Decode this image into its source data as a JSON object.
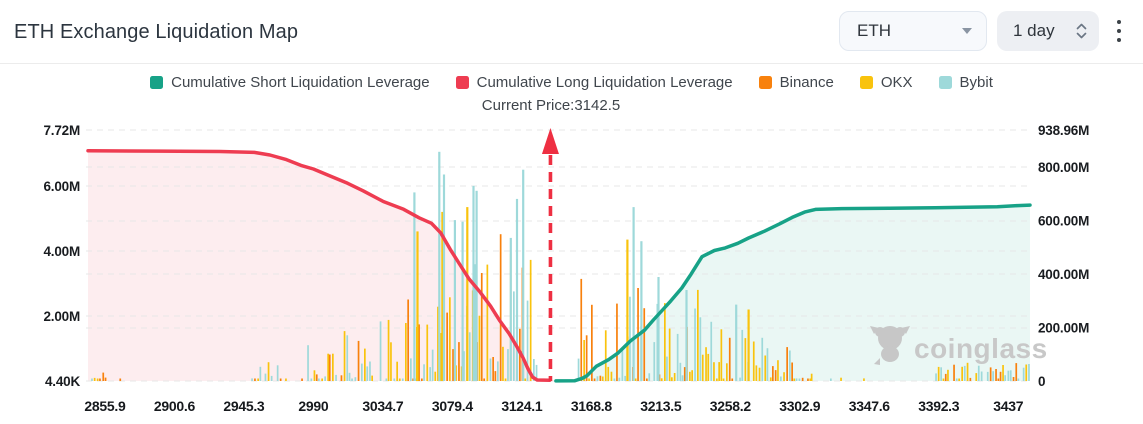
{
  "header": {
    "title": "ETH Exchange Liquidation Map",
    "symbol_select": {
      "value": "ETH"
    },
    "period_select": {
      "value": "1 day"
    }
  },
  "legend": {
    "items": [
      {
        "label": "Cumulative Short Liquidation Leverage",
        "color_key": "short"
      },
      {
        "label": "Cumulative Long Liquidation Leverage",
        "color_key": "long"
      },
      {
        "label": "Binance",
        "color_key": "binance"
      },
      {
        "label": "OKX",
        "color_key": "okx"
      },
      {
        "label": "Bybit",
        "color_key": "bybit"
      }
    ]
  },
  "annotation": {
    "current_price_text": "Current Price:3142.5",
    "current_price": 3142.5
  },
  "watermark_text": "coinglass",
  "colors": {
    "short": "#17a287",
    "long": "#ee3c51",
    "binance": "#f8810d",
    "okx": "#f9c30d",
    "bybit": "#9ed9da",
    "gridline": "#e7e7e7",
    "watermark": "#c7c7c7"
  },
  "chart_data": {
    "type": "bar+line",
    "title": "ETH Exchange Liquidation Map",
    "x_axis": {
      "min": 2845,
      "max": 3451,
      "ticks": [
        "2855.9",
        "2900.6",
        "2945.3",
        "2990",
        "3034.7",
        "3079.4",
        "3124.1",
        "3168.8",
        "3213.5",
        "3258.2",
        "3302.9",
        "3347.6",
        "3392.3",
        "3437"
      ],
      "tick_values": [
        2855.9,
        2900.6,
        2945.3,
        2990,
        3034.7,
        3079.4,
        3124.1,
        3168.8,
        3213.5,
        3258.2,
        3302.9,
        3347.6,
        3392.3,
        3437
      ]
    },
    "y_left": {
      "max_m": 7.72,
      "ticks": [
        {
          "label": "7.72M",
          "value_m": 7.72
        },
        {
          "label": "6.00M",
          "value_m": 6.0
        },
        {
          "label": "4.00M",
          "value_m": 4.0
        },
        {
          "label": "2.00M",
          "value_m": 2.0
        },
        {
          "label": "4.40K",
          "value_m": 0.0044
        }
      ]
    },
    "y_right": {
      "max_m": 938.96,
      "ticks": [
        {
          "label": "938.96M",
          "value_m": 938.96
        },
        {
          "label": "800.00M",
          "value_m": 800
        },
        {
          "label": "600.00M",
          "value_m": 600
        },
        {
          "label": "400.00M",
          "value_m": 400
        },
        {
          "label": "200.00M",
          "value_m": 200
        },
        {
          "label": "0",
          "value_m": 0
        }
      ]
    },
    "current_price": 3142.5,
    "series": [
      {
        "name": "Cumulative Long Liquidation Leverage",
        "axis": "left",
        "color_key": "long",
        "points": [
          [
            2845,
            7.08
          ],
          [
            2890,
            7.07
          ],
          [
            2930,
            7.06
          ],
          [
            2952,
            7.03
          ],
          [
            2962,
            6.95
          ],
          [
            2972,
            6.82
          ],
          [
            2982,
            6.63
          ],
          [
            2990,
            6.52
          ],
          [
            3000,
            6.32
          ],
          [
            3012,
            6.08
          ],
          [
            3022,
            5.85
          ],
          [
            3035,
            5.52
          ],
          [
            3048,
            5.28
          ],
          [
            3058,
            5.02
          ],
          [
            3066,
            4.85
          ],
          [
            3072,
            4.55
          ],
          [
            3078,
            4.05
          ],
          [
            3084,
            3.6
          ],
          [
            3090,
            3.15
          ],
          [
            3097,
            2.75
          ],
          [
            3104,
            2.3
          ],
          [
            3110,
            1.85
          ],
          [
            3116,
            1.45
          ],
          [
            3121,
            1.05
          ],
          [
            3125,
            0.7
          ],
          [
            3128,
            0.38
          ],
          [
            3131,
            0.12
          ],
          [
            3134,
            0.03
          ],
          [
            3142,
            0.02
          ]
        ]
      },
      {
        "name": "Cumulative Short Liquidation Leverage",
        "axis": "right",
        "color_key": "short",
        "points": [
          [
            3146,
            0.3
          ],
          [
            3158,
            0.6
          ],
          [
            3163,
            10
          ],
          [
            3166,
            20
          ],
          [
            3172,
            55
          ],
          [
            3180,
            80
          ],
          [
            3186,
            105
          ],
          [
            3194,
            150
          ],
          [
            3203,
            190
          ],
          [
            3209,
            230
          ],
          [
            3214,
            262
          ],
          [
            3220,
            300
          ],
          [
            3227,
            348
          ],
          [
            3233,
            400
          ],
          [
            3240,
            465
          ],
          [
            3248,
            488
          ],
          [
            3255,
            498
          ],
          [
            3263,
            515
          ],
          [
            3270,
            535
          ],
          [
            3280,
            560
          ],
          [
            3290,
            588
          ],
          [
            3298,
            612
          ],
          [
            3306,
            632
          ],
          [
            3313,
            642
          ],
          [
            3330,
            645
          ],
          [
            3360,
            646
          ],
          [
            3390,
            648
          ],
          [
            3410,
            650
          ],
          [
            3430,
            652
          ],
          [
            3443,
            656
          ],
          [
            3451,
            658
          ]
        ]
      }
    ],
    "exchanges": [
      "Binance",
      "OKX",
      "Bybit"
    ],
    "bar_clusters": [
      {
        "from": 2847,
        "to": 2867,
        "density": 0.5,
        "v_max_m": 0.4,
        "skew": 1.8,
        "ramp": [
          1,
          0.5
        ]
      },
      {
        "from": 2950,
        "to": 3000,
        "density": 0.75,
        "v_max_m": 1.4,
        "skew": 2.2,
        "ramp": [
          0.3,
          1
        ]
      },
      {
        "from": 3000,
        "to": 3056,
        "density": 0.85,
        "v_max_m": 2.7,
        "skew": 2.0,
        "ramp": [
          0.5,
          1
        ]
      },
      {
        "from": 3056,
        "to": 3134,
        "density": 0.95,
        "v_max_m": 4.3,
        "skew": 1.7,
        "ramp": [
          0.7,
          1
        ]
      },
      {
        "from": 3148,
        "to": 3156,
        "density": 0.25,
        "v_max_m": 0.25,
        "skew": 1.2,
        "ramp": [
          1,
          1
        ]
      },
      {
        "from": 3160,
        "to": 3240,
        "density": 0.95,
        "v_max_m": 3.5,
        "skew": 1.8,
        "ramp": [
          1,
          0.8
        ]
      },
      {
        "from": 3240,
        "to": 3310,
        "density": 0.9,
        "v_max_m": 2.0,
        "skew": 2.2,
        "ramp": [
          1,
          0.45
        ]
      },
      {
        "from": 3310,
        "to": 3345,
        "density": 0.3,
        "v_max_m": 0.35,
        "skew": 1.5,
        "ramp": [
          1,
          1
        ]
      },
      {
        "from": 3390,
        "to": 3450,
        "density": 0.85,
        "v_max_m": 0.8,
        "skew": 1.6,
        "ramp": [
          0.6,
          1
        ]
      }
    ],
    "bar_spikes": [
      [
        3055,
        5.8,
        "bybit"
      ],
      [
        3057,
        4.6,
        "okx"
      ],
      [
        3071,
        7.05,
        "bybit"
      ],
      [
        3073,
        5.2,
        "okx"
      ],
      [
        3074,
        6.35,
        "bybit"
      ],
      [
        3081,
        4.95,
        "bybit"
      ],
      [
        3086,
        4.9,
        "bybit"
      ],
      [
        3089,
        5.35,
        "okx"
      ],
      [
        3093,
        6.0,
        "bybit"
      ],
      [
        3095,
        5.85,
        "bybit"
      ],
      [
        3117,
        4.4,
        "bybit"
      ],
      [
        3121,
        5.6,
        "bybit"
      ],
      [
        3125,
        6.5,
        "bybit"
      ],
      [
        3192,
        4.35,
        "okx"
      ],
      [
        3196,
        5.35,
        "bybit"
      ],
      [
        3201,
        4.3,
        "bybit"
      ],
      [
        3212,
        3.2,
        "bybit"
      ],
      [
        3230,
        2.8,
        "bybit"
      ],
      [
        3262,
        2.35,
        "bybit"
      ],
      [
        3270,
        2.2,
        "okx"
      ]
    ]
  }
}
